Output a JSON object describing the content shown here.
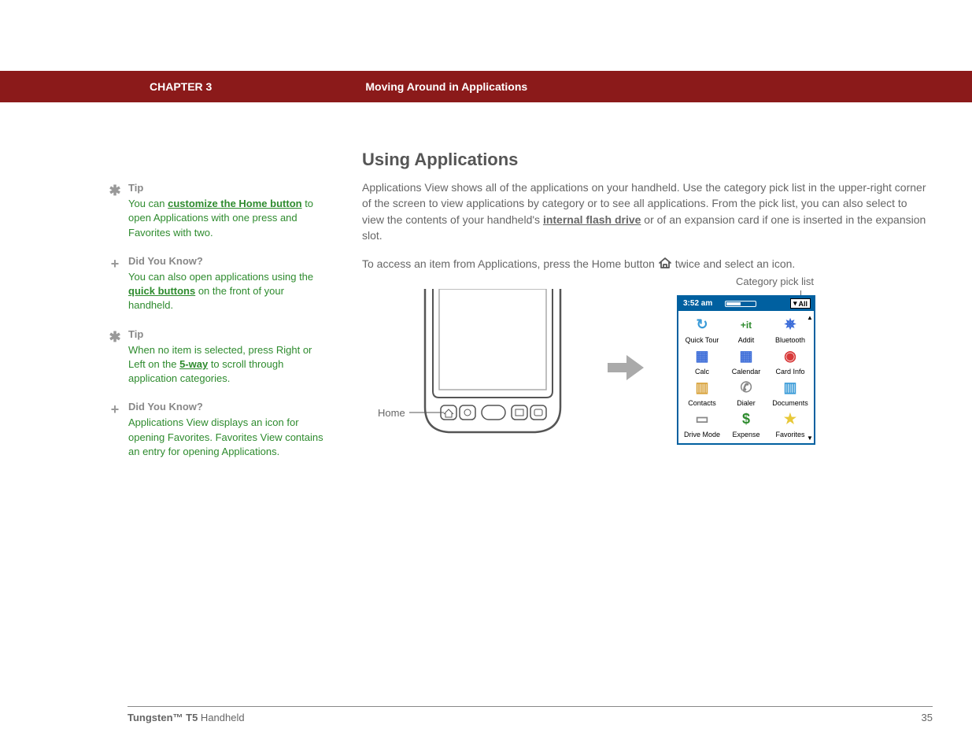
{
  "header": {
    "chapter": "CHAPTER 3",
    "breadcrumb": "Moving Around in Applications"
  },
  "sidebar": {
    "items": [
      {
        "icon": "✱",
        "heading": "Tip",
        "pre": "You can ",
        "link": "customize the Home button",
        "post": " to open Applications with one press and Favorites with two."
      },
      {
        "icon": "+",
        "heading": "Did You Know?",
        "pre": "You can also open applications using the ",
        "link": "quick buttons",
        "post": " on the front of your handheld."
      },
      {
        "icon": "✱",
        "heading": "Tip",
        "pre": "When no item is selected, press Right or Left on the ",
        "link": "5-way",
        "post": " to scroll through application categories."
      },
      {
        "icon": "+",
        "heading": "Did You Know?",
        "pre": "",
        "link": "",
        "post": "Applications View displays an icon for opening Favorites. Favorites View contains an entry for opening Applications."
      }
    ]
  },
  "main": {
    "title": "Using Applications",
    "para1_pre": "Applications View shows all of the applications on your handheld. Use the category pick list in the upper-right corner of the screen to view applications by category or to see all applications. From the pick list, you can also select to view the contents of your handheld's ",
    "para1_link": "internal flash drive",
    "para1_post": " or of an expansion card if one is inserted in the expansion slot.",
    "para2_pre": "To access an item from Applications, press the Home button ",
    "para2_post": " twice and select an icon."
  },
  "figure": {
    "home_label": "Home",
    "category_label": "Category pick list",
    "screen": {
      "time": "3:52 am",
      "dropdown": "All",
      "apps": [
        {
          "label": "Quick Tour",
          "color": "#3a9bd8",
          "glyph": "↻"
        },
        {
          "label": "Addit",
          "color": "#2e8b2e",
          "glyph": "+it"
        },
        {
          "label": "Bluetooth",
          "color": "#3a6bd8",
          "glyph": "✵"
        },
        {
          "label": "Calc",
          "color": "#3a6bd8",
          "glyph": "▦"
        },
        {
          "label": "Calendar",
          "color": "#3a6bd8",
          "glyph": "▦"
        },
        {
          "label": "Card Info",
          "color": "#d83a3a",
          "glyph": "◉"
        },
        {
          "label": "Contacts",
          "color": "#d8a23a",
          "glyph": "▥"
        },
        {
          "label": "Dialer",
          "color": "#888",
          "glyph": "✆"
        },
        {
          "label": "Documents",
          "color": "#3a9bd8",
          "glyph": "▥"
        },
        {
          "label": "Drive Mode",
          "color": "#888",
          "glyph": "▭"
        },
        {
          "label": "Expense",
          "color": "#2e8b2e",
          "glyph": "$"
        },
        {
          "label": "Favorites",
          "color": "#e8c838",
          "glyph": "★"
        }
      ]
    }
  },
  "footer": {
    "product_bold": "Tungsten™ T5",
    "product_light": " Handheld",
    "page": "35"
  },
  "colors": {
    "header_bg": "#8b1a1a",
    "link_green": "#2e8b2e",
    "text_gray": "#666666",
    "screen_frame": "#0060a0"
  }
}
